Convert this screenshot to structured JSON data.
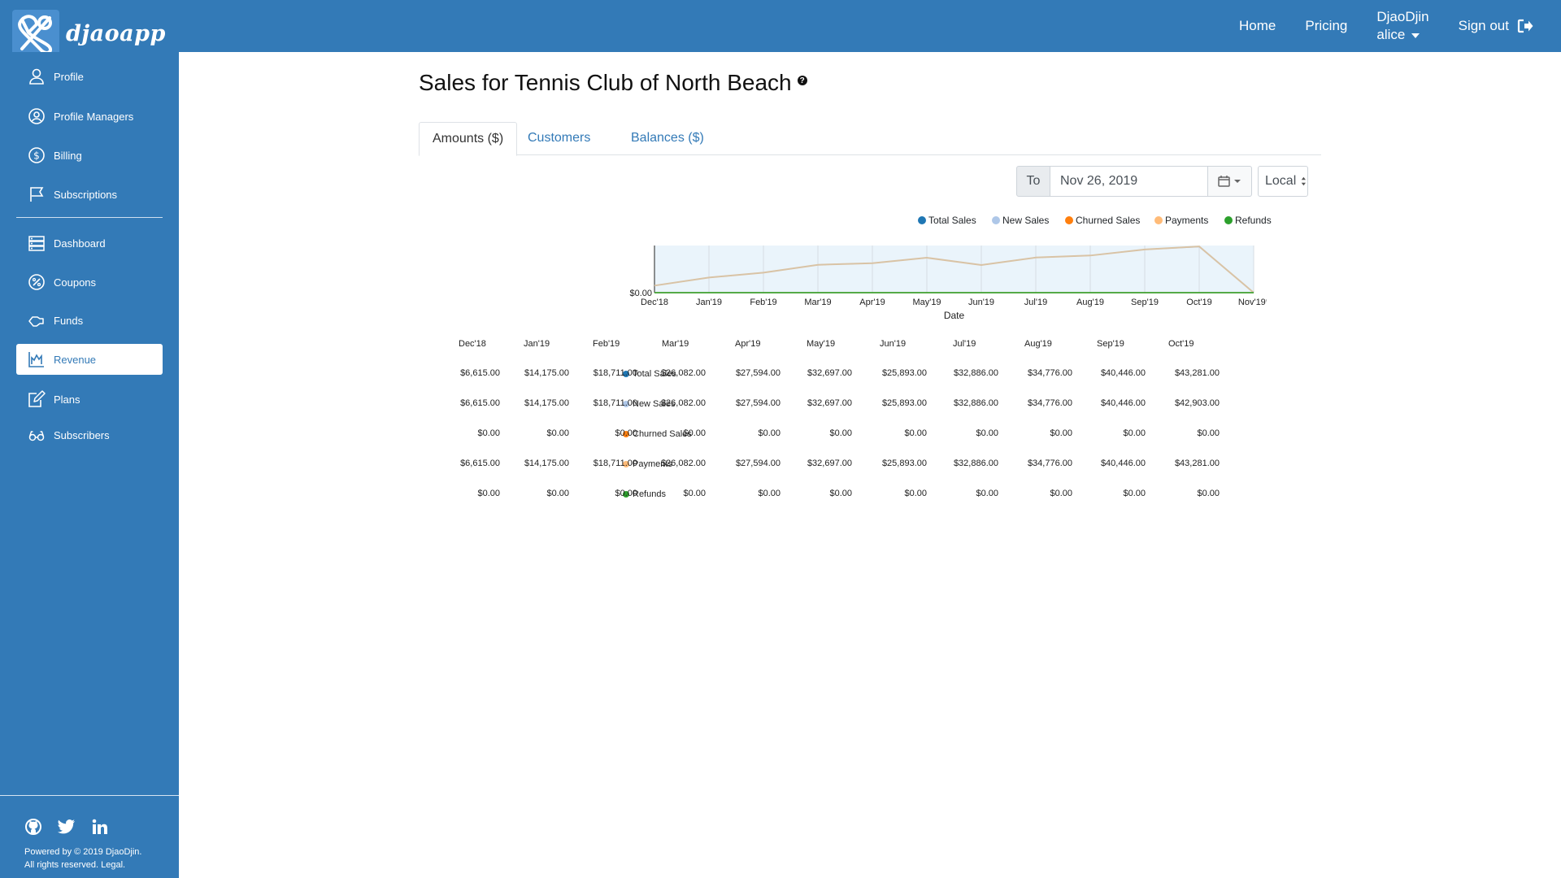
{
  "header": {
    "logo_text": "djaoapp",
    "nav": {
      "home": "Home",
      "pricing": "Pricing",
      "user_name": "DjaoDjin",
      "user_login": "alice",
      "signout": "Sign out"
    }
  },
  "sidebar": {
    "items": [
      {
        "label": "Profile",
        "icon": "user-icon"
      },
      {
        "label": "Profile Managers",
        "icon": "user-circle-icon"
      },
      {
        "label": "Billing",
        "icon": "dollar-circle-icon"
      },
      {
        "label": "Subscriptions",
        "icon": "flag-icon"
      },
      {
        "label": "Dashboard",
        "icon": "server-icon"
      },
      {
        "label": "Coupons",
        "icon": "percent-icon"
      },
      {
        "label": "Funds",
        "icon": "hand-icon"
      },
      {
        "label": "Revenue",
        "icon": "chart-line-icon",
        "active": true
      },
      {
        "label": "Plans",
        "icon": "edit-icon"
      },
      {
        "label": "Subscribers",
        "icon": "glasses-icon"
      }
    ],
    "footer": {
      "line1": "Powered by © 2019 DjaoDjin.",
      "line2": "All rights reserved. Legal."
    }
  },
  "page": {
    "title": "Sales for Tennis Club of North Beach",
    "help": "?",
    "tabs": [
      "Amounts ($)",
      "Customers",
      "Balances ($)"
    ],
    "range": {
      "to_label": "To",
      "date": "Nov 26, 2019",
      "timezone": "Local"
    }
  },
  "colors": {
    "total_sales": "#1f77b4",
    "new_sales": "#aec7e8",
    "churned_sales": "#ff7f0e",
    "payments": "#ffbb78",
    "refunds": "#2ca02c"
  },
  "chart_data": {
    "type": "line",
    "x": [
      "Dec'18",
      "Jan'19",
      "Feb'19",
      "Mar'19",
      "Apr'19",
      "May'19",
      "Jun'19",
      "Jul'19",
      "Aug'19",
      "Sep'19",
      "Oct'19",
      "Nov'19*"
    ],
    "xlabel": "Date",
    "ytick": "$0.00",
    "series": [
      {
        "name": "Total Sales",
        "values": [
          6615,
          14175,
          18711,
          26082,
          27594,
          32697,
          25893,
          32886,
          34776,
          40446,
          43281,
          0
        ]
      },
      {
        "name": "New Sales",
        "values": [
          6615,
          14175,
          18711,
          26082,
          27594,
          32697,
          25893,
          32886,
          34776,
          40446,
          42903,
          0
        ]
      },
      {
        "name": "Churned Sales",
        "values": [
          0,
          0,
          0,
          0,
          0,
          0,
          0,
          0,
          0,
          0,
          0,
          0
        ]
      },
      {
        "name": "Payments",
        "values": [
          6615,
          14175,
          18711,
          26082,
          27594,
          32697,
          25893,
          32886,
          34776,
          40446,
          43281,
          0
        ]
      },
      {
        "name": "Refunds",
        "values": [
          0,
          0,
          0,
          0,
          0,
          0,
          0,
          0,
          0,
          0,
          0,
          0
        ]
      }
    ],
    "grid": true,
    "legend_position": "top-right"
  },
  "table": {
    "headers": [
      "Dec'18",
      "Jan'19",
      "Feb'19",
      "Mar'19",
      "Apr'19",
      "May'19",
      "Jun'19",
      "Jul'19",
      "Aug'19",
      "Sep'19",
      "Oct'19"
    ],
    "rows": [
      {
        "label": "Total Sales",
        "values": [
          "$6,615.00",
          "$14,175.00",
          "$18,711.00",
          "$26,082.00",
          "$27,594.00",
          "$32,697.00",
          "$25,893.00",
          "$32,886.00",
          "$34,776.00",
          "$40,446.00",
          "$43,281.00"
        ]
      },
      {
        "label": "New Sales",
        "values": [
          "$6,615.00",
          "$14,175.00",
          "$18,711.00",
          "$26,082.00",
          "$27,594.00",
          "$32,697.00",
          "$25,893.00",
          "$32,886.00",
          "$34,776.00",
          "$40,446.00",
          "$42,903.00"
        ]
      },
      {
        "label": "Churned Sales",
        "values": [
          "$0.00",
          "$0.00",
          "$0.00",
          "$0.00",
          "$0.00",
          "$0.00",
          "$0.00",
          "$0.00",
          "$0.00",
          "$0.00",
          "$0.00"
        ]
      },
      {
        "label": "Payments",
        "values": [
          "$6,615.00",
          "$14,175.00",
          "$18,711.00",
          "$26,082.00",
          "$27,594.00",
          "$32,697.00",
          "$25,893.00",
          "$32,886.00",
          "$34,776.00",
          "$40,446.00",
          "$43,281.00"
        ]
      },
      {
        "label": "Refunds",
        "values": [
          "$0.00",
          "$0.00",
          "$0.00",
          "$0.00",
          "$0.00",
          "$0.00",
          "$0.00",
          "$0.00",
          "$0.00",
          "$0.00",
          "$0.00"
        ]
      }
    ]
  }
}
